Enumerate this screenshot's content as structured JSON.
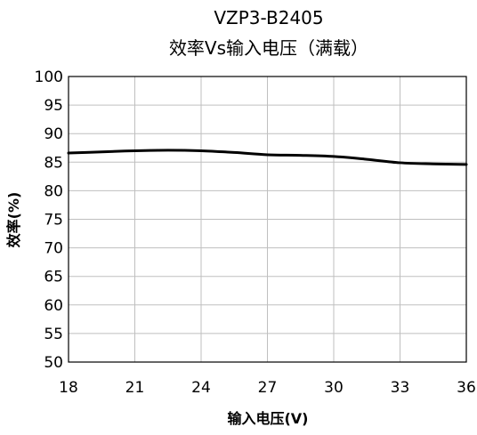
{
  "chart_data": {
    "type": "line",
    "title": "VZP3-B2405",
    "subtitle": "效率Vs输入电压（满载）",
    "xlabel": "输入电压(V)",
    "ylabel": "效率(%)",
    "xlim": [
      18,
      36
    ],
    "ylim": [
      50,
      100
    ],
    "xticks": [
      "18",
      "21",
      "24",
      "27",
      "30",
      "33",
      "36"
    ],
    "yticks": [
      "50",
      "55",
      "60",
      "65",
      "70",
      "75",
      "80",
      "85",
      "90",
      "95",
      "100"
    ],
    "grid": true,
    "legend": "none",
    "series": [
      {
        "color": "#000000",
        "x": [
          18,
          19.5,
          21,
          22.5,
          24,
          25.5,
          27,
          28.5,
          30,
          31.5,
          33,
          34.5,
          36
        ],
        "y": [
          86.6,
          86.8,
          87.0,
          87.1,
          87.0,
          86.7,
          86.3,
          86.2,
          86.0,
          85.5,
          84.9,
          84.7,
          84.6
        ]
      }
    ]
  }
}
